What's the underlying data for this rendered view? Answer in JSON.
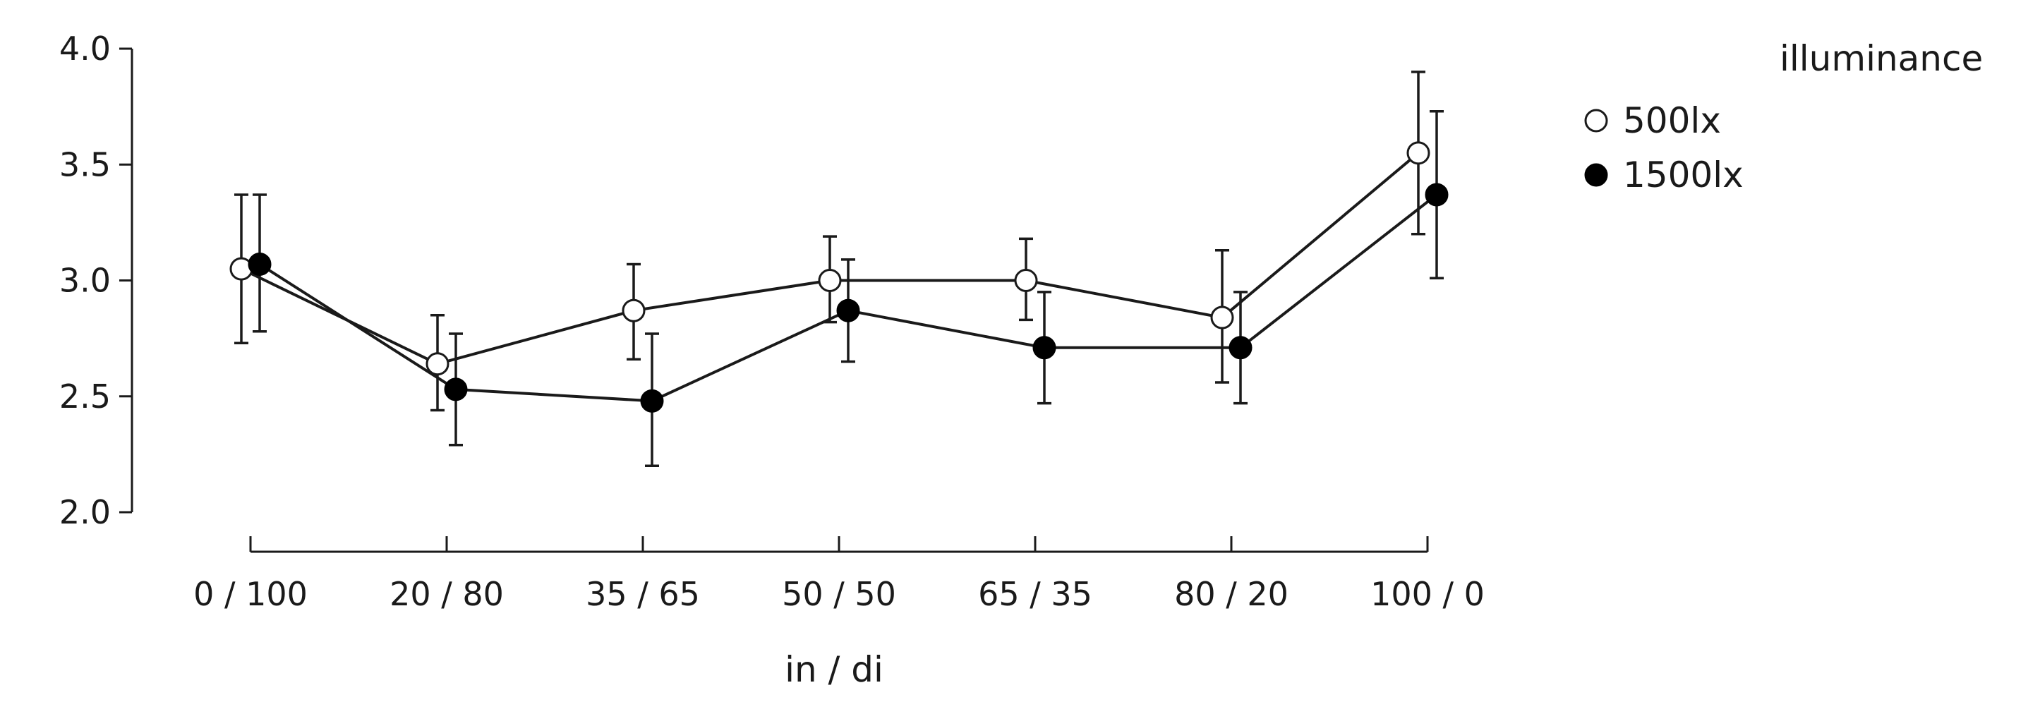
{
  "chart_data": {
    "type": "line",
    "title": "",
    "xlabel": "in / di",
    "ylabel": "",
    "categories": [
      "0 / 100",
      "20 / 80",
      "35 / 65",
      "50 / 50",
      "65 / 35",
      "80 / 20",
      "100 / 0"
    ],
    "ylim": [
      2.0,
      4.0
    ],
    "yticks": [
      "2.0",
      "2.5",
      "3.0",
      "3.5",
      "4.0"
    ],
    "grid": false,
    "legend_title": "illuminance",
    "legend_position": "top-right",
    "series": [
      {
        "name": "500lx",
        "marker": "open-circle",
        "color": "#ffffff",
        "values": [
          3.05,
          2.64,
          2.87,
          3.0,
          3.0,
          2.84,
          3.55
        ],
        "err_low": [
          2.73,
          2.44,
          2.66,
          2.82,
          2.83,
          2.56,
          3.2
        ],
        "err_high": [
          3.37,
          2.85,
          3.07,
          3.19,
          3.18,
          3.13,
          3.9
        ]
      },
      {
        "name": "1500lx",
        "marker": "filled-circle",
        "color": "#000000",
        "values": [
          3.07,
          2.53,
          2.48,
          2.87,
          2.71,
          2.71,
          3.37
        ],
        "err_low": [
          2.78,
          2.29,
          2.2,
          2.65,
          2.47,
          2.47,
          3.01
        ],
        "err_high": [
          3.37,
          2.77,
          2.77,
          3.09,
          2.95,
          2.95,
          3.73
        ]
      }
    ]
  }
}
